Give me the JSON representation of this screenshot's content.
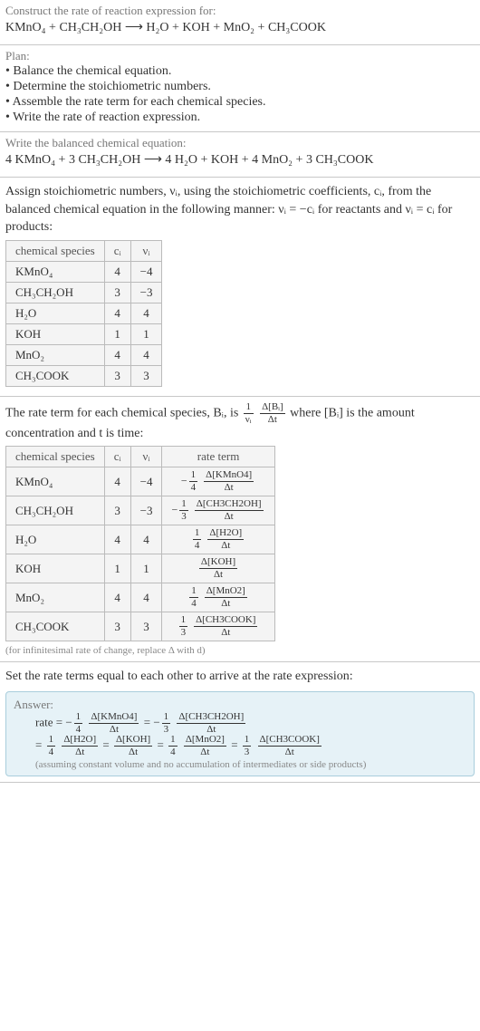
{
  "sec1": {
    "prompt": "Construct the rate of reaction expression for:",
    "equation": "KMnO₄ + CH₃CH₂OH  ⟶  H₂O + KOH + MnO₂ + CH₃COOK"
  },
  "sec2": {
    "title": "Plan:",
    "items": [
      "• Balance the chemical equation.",
      "• Determine the stoichiometric numbers.",
      "• Assemble the rate term for each chemical species.",
      "• Write the rate of reaction expression."
    ]
  },
  "sec3": {
    "prompt": "Write the balanced chemical equation:",
    "equation": "4 KMnO₄ + 3 CH₃CH₂OH  ⟶  4 H₂O + KOH + 4 MnO₂ + 3 CH₃COOK"
  },
  "sec4": {
    "explain": "Assign stoichiometric numbers, νᵢ, using the stoichiometric coefficients, cᵢ, from the balanced chemical equation in the following manner: νᵢ = −cᵢ for reactants and νᵢ = cᵢ for products:",
    "headers": [
      "chemical species",
      "cᵢ",
      "νᵢ"
    ],
    "rows": [
      [
        "KMnO₄",
        "4",
        "−4"
      ],
      [
        "CH₃CH₂OH",
        "3",
        "−3"
      ],
      [
        "H₂O",
        "4",
        "4"
      ],
      [
        "KOH",
        "1",
        "1"
      ],
      [
        "MnO₂",
        "4",
        "4"
      ],
      [
        "CH₃COOK",
        "3",
        "3"
      ]
    ]
  },
  "sec5": {
    "explain_pre": "The rate term for each chemical species, Bᵢ, is ",
    "explain_post": " where [Bᵢ] is the amount concentration and t is time:",
    "frac1_num": "1",
    "frac1_den": "νᵢ",
    "frac2_num": "Δ[Bᵢ]",
    "frac2_den": "Δt",
    "headers": [
      "chemical species",
      "cᵢ",
      "νᵢ",
      "rate term"
    ],
    "rows": [
      {
        "sp": "KMnO₄",
        "c": "4",
        "v": "−4",
        "sign": "−",
        "fn": "1",
        "fd": "4",
        "dn": "Δ[KMnO4]",
        "dd": "Δt"
      },
      {
        "sp": "CH₃CH₂OH",
        "c": "3",
        "v": "−3",
        "sign": "−",
        "fn": "1",
        "fd": "3",
        "dn": "Δ[CH3CH2OH]",
        "dd": "Δt"
      },
      {
        "sp": "H₂O",
        "c": "4",
        "v": "4",
        "sign": "",
        "fn": "1",
        "fd": "4",
        "dn": "Δ[H2O]",
        "dd": "Δt"
      },
      {
        "sp": "KOH",
        "c": "1",
        "v": "1",
        "sign": "",
        "fn": "",
        "fd": "",
        "dn": "Δ[KOH]",
        "dd": "Δt"
      },
      {
        "sp": "MnO₂",
        "c": "4",
        "v": "4",
        "sign": "",
        "fn": "1",
        "fd": "4",
        "dn": "Δ[MnO2]",
        "dd": "Δt"
      },
      {
        "sp": "CH₃COOK",
        "c": "3",
        "v": "3",
        "sign": "",
        "fn": "1",
        "fd": "3",
        "dn": "Δ[CH3COOK]",
        "dd": "Δt"
      }
    ],
    "note": "(for infinitesimal rate of change, replace Δ with d)"
  },
  "sec6": {
    "prompt": "Set the rate terms equal to each other to arrive at the rate expression:",
    "answer_label": "Answer:",
    "rate_label": "rate = ",
    "terms": [
      {
        "sign": "−",
        "fn": "1",
        "fd": "4",
        "dn": "Δ[KMnO4]",
        "dd": "Δt"
      },
      {
        "sign": "−",
        "fn": "1",
        "fd": "3",
        "dn": "Δ[CH3CH2OH]",
        "dd": "Δt"
      },
      {
        "sign": "",
        "fn": "1",
        "fd": "4",
        "dn": "Δ[H2O]",
        "dd": "Δt"
      },
      {
        "sign": "",
        "fn": "",
        "fd": "",
        "dn": "Δ[KOH]",
        "dd": "Δt"
      },
      {
        "sign": "",
        "fn": "1",
        "fd": "4",
        "dn": "Δ[MnO2]",
        "dd": "Δt"
      },
      {
        "sign": "",
        "fn": "1",
        "fd": "3",
        "dn": "Δ[CH3COOK]",
        "dd": "Δt"
      }
    ],
    "note": "(assuming constant volume and no accumulation of intermediates or side products)"
  }
}
